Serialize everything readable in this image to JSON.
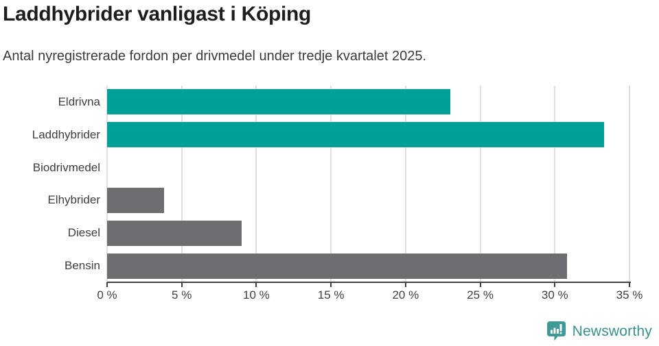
{
  "header": {
    "title": "Laddhybrider vanligast i Köping",
    "subtitle": "Antal nyregistrerade fordon per drivmedel under tredje kvartalet 2025."
  },
  "chart_data": {
    "type": "bar",
    "orientation": "horizontal",
    "title": "Laddhybrider vanligast i Köping",
    "subtitle": "Antal nyregistrerade fordon per drivmedel under tredje kvartalet 2025.",
    "categories": [
      "Eldrivna",
      "Laddhybrider",
      "Biodrivmedel",
      "Elhybrider",
      "Diesel",
      "Bensin"
    ],
    "values": [
      23.0,
      33.3,
      0,
      3.8,
      9.0,
      30.8
    ],
    "unit": "%",
    "bar_colors": [
      "#00a099",
      "#00a099",
      "#6d6d72",
      "#6d6d72",
      "#6d6d72",
      "#6d6d72"
    ],
    "xlabel": "",
    "ylabel": "",
    "xlim": [
      0,
      35
    ],
    "x_ticks": [
      0,
      5,
      10,
      15,
      20,
      25,
      30,
      35
    ],
    "x_tick_suffix": " %",
    "grid": true,
    "legend_position": "none"
  },
  "footer": {
    "brand": "Newsworthy"
  },
  "colors": {
    "highlight": "#00a099",
    "neutral": "#6d6d72",
    "grid": "#e0e0e0",
    "axis": "#414141",
    "title_text": "#1d1d1b",
    "body_text": "#3d3d3d",
    "brand_teal": "#378f8c",
    "logo_background": "#3d9a96"
  }
}
